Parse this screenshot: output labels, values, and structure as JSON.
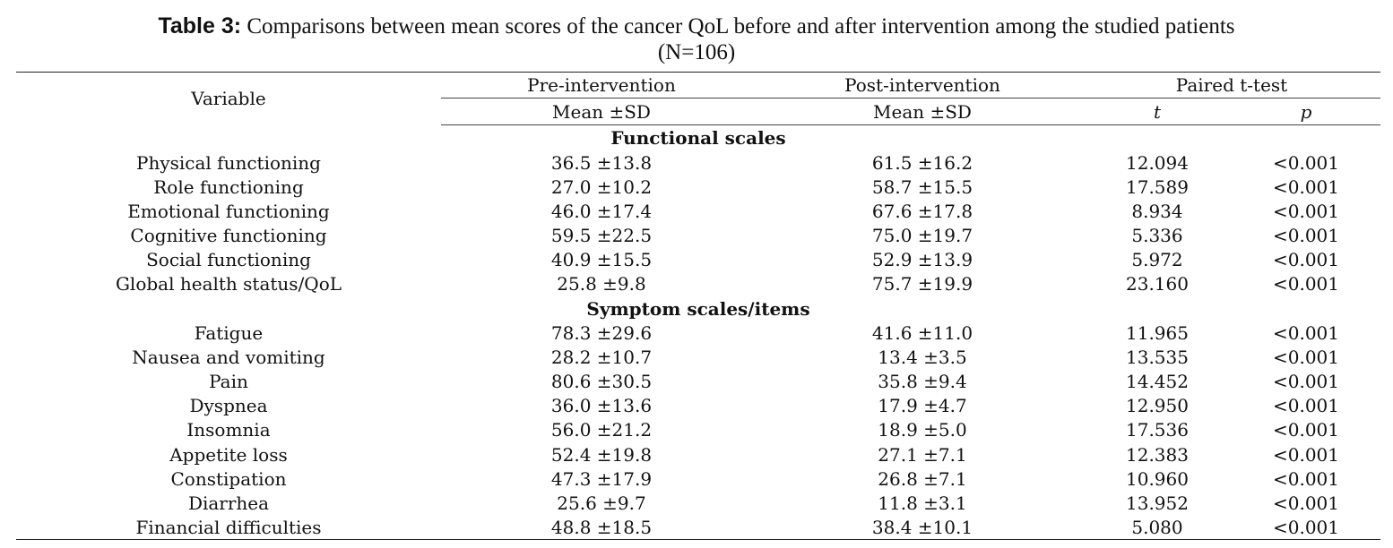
{
  "caption": {
    "label": "Table 3:",
    "text": " Comparisons between mean scores of the cancer QoL before and after intervention among the studied patients",
    "n": "(N=106)"
  },
  "header": {
    "variable": "Variable",
    "pre": "Pre-intervention",
    "post": "Post-intervention",
    "ttest": "Paired t-test",
    "pre_sub": "Mean ±SD",
    "post_sub": "Mean ±SD",
    "t": "t",
    "p": "p"
  },
  "sections": [
    {
      "title": "Functional scales",
      "rows": [
        {
          "variable": "Physical functioning",
          "pre": "36.5 ±13.8",
          "post": "61.5 ±16.2",
          "t": "12.094",
          "p": "<0.001"
        },
        {
          "variable": "Role functioning",
          "pre": "27.0 ±10.2",
          "post": "58.7 ±15.5",
          "t": "17.589",
          "p": "<0.001"
        },
        {
          "variable": "Emotional functioning",
          "pre": "46.0 ±17.4",
          "post": "67.6 ±17.8",
          "t": "8.934",
          "p": "<0.001"
        },
        {
          "variable": "Cognitive functioning",
          "pre": "59.5 ±22.5",
          "post": "75.0 ±19.7",
          "t": "5.336",
          "p": "<0.001"
        },
        {
          "variable": "Social functioning",
          "pre": "40.9 ±15.5",
          "post": "52.9 ±13.9",
          "t": "5.972",
          "p": "<0.001"
        },
        {
          "variable": "Global health status/QoL",
          "pre": "25.8 ±9.8",
          "post": "75.7 ±19.9",
          "t": "23.160",
          "p": "<0.001"
        }
      ]
    },
    {
      "title": "Symptom scales/items",
      "rows": [
        {
          "variable": "Fatigue",
          "pre": "78.3 ±29.6",
          "post": "41.6 ±11.0",
          "t": "11.965",
          "p": "<0.001"
        },
        {
          "variable": "Nausea and vomiting",
          "pre": "28.2 ±10.7",
          "post": "13.4 ±3.5",
          "t": "13.535",
          "p": "<0.001"
        },
        {
          "variable": "Pain",
          "pre": "80.6 ±30.5",
          "post": "35.8 ±9.4",
          "t": "14.452",
          "p": "<0.001"
        },
        {
          "variable": "Dyspnea",
          "pre": "36.0 ±13.6",
          "post": "17.9 ±4.7",
          "t": "12.950",
          "p": "<0.001"
        },
        {
          "variable": "Insomnia",
          "pre": "56.0 ±21.2",
          "post": "18.9 ±5.0",
          "t": "17.536",
          "p": "<0.001"
        },
        {
          "variable": "Appetite loss",
          "pre": "52.4 ±19.8",
          "post": "27.1 ±7.1",
          "t": "12.383",
          "p": "<0.001"
        },
        {
          "variable": "Constipation",
          "pre": "47.3 ±17.9",
          "post": "26.8 ±7.1",
          "t": "10.960",
          "p": "<0.001"
        },
        {
          "variable": "Diarrhea",
          "pre": "25.6 ±9.7",
          "post": "11.8 ±3.1",
          "t": "13.952",
          "p": "<0.001"
        },
        {
          "variable": "Financial difficulties",
          "pre": "48.8 ±18.5",
          "post": "38.4 ±10.1",
          "t": "5.080",
          "p": "<0.001"
        }
      ]
    }
  ]
}
